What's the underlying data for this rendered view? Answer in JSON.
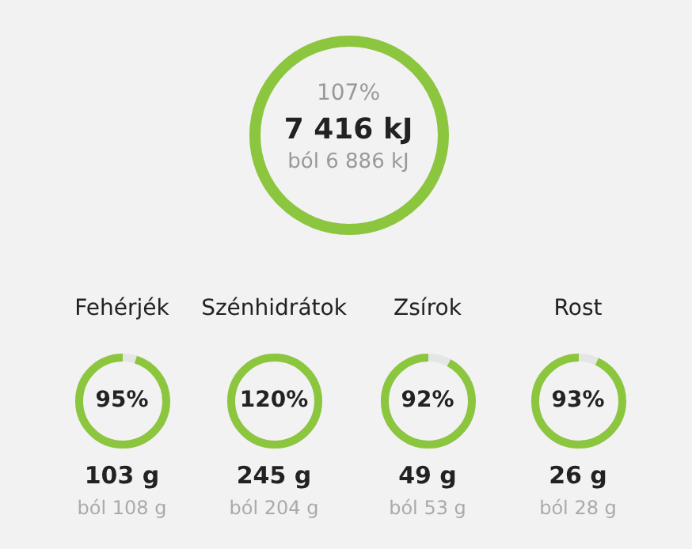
{
  "chart_data": [
    {
      "type": "other",
      "values": [
        107
      ],
      "value_labels": [
        "107%"
      ],
      "annotations": [
        "7 416 kJ",
        "ból 6 886 kJ"
      ],
      "color": "#8cc63f"
    },
    {
      "type": "other",
      "title": "Fehérjék",
      "values": [
        95
      ],
      "value_labels": [
        "95%"
      ],
      "annotations": [
        "103 g",
        "ból 108 g"
      ],
      "color": "#8cc63f"
    },
    {
      "type": "other",
      "title": "Szénhidrátok",
      "values": [
        120
      ],
      "value_labels": [
        "120%"
      ],
      "annotations": [
        "245 g",
        "ból 204 g"
      ],
      "color": "#8cc63f"
    },
    {
      "type": "other",
      "title": "Zsírok",
      "values": [
        92
      ],
      "value_labels": [
        "92%"
      ],
      "annotations": [
        "49 g",
        "ból 53 g"
      ],
      "color": "#8cc63f"
    },
    {
      "type": "other",
      "title": "Rost",
      "values": [
        93
      ],
      "value_labels": [
        "93%"
      ],
      "annotations": [
        "26 g",
        "ból 28 g"
      ],
      "color": "#8cc63f"
    }
  ]
}
